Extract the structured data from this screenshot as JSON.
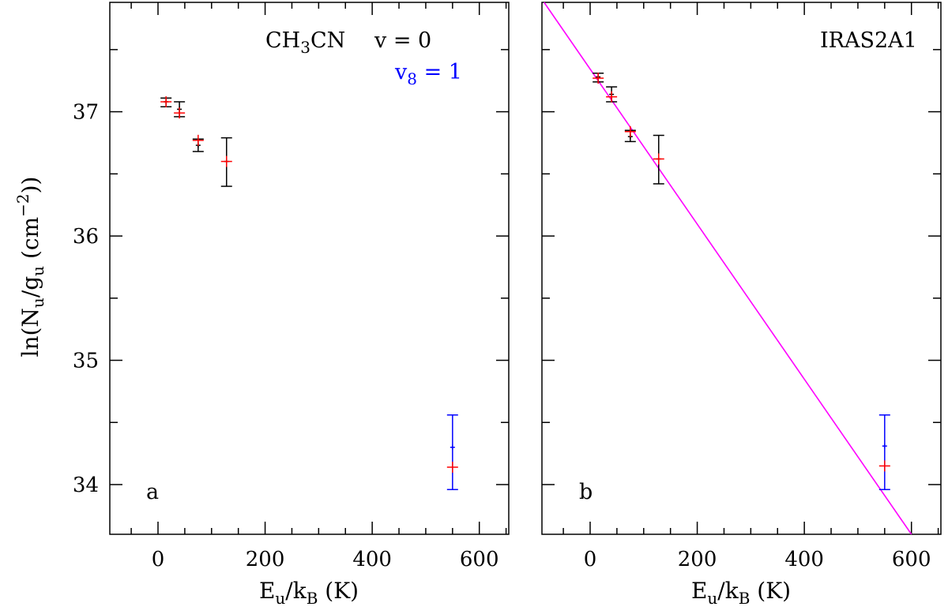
{
  "figure": {
    "shared_ylabel": "ln(N_u/g_u (cm^-2))"
  },
  "chart_data": [
    {
      "type": "scatter",
      "panel_label": "a",
      "molecule": "CH3CN",
      "legend": [
        {
          "label": "v = 0",
          "color": "#000000"
        },
        {
          "label": "v8 = 1",
          "color": "#0000ff"
        }
      ],
      "xlabel": "E_u/k_B (K)",
      "ylabel": "ln(N_u/g_u (cm^-2))",
      "xlim": [
        -90,
        655
      ],
      "ylim": [
        33.6,
        37.88
      ],
      "xticks": [
        0,
        200,
        400,
        600
      ],
      "yticks": [
        34,
        35,
        36,
        37
      ],
      "series": [
        {
          "name": "v = 0 observed",
          "color": "#000000",
          "points": [
            {
              "x": 15,
              "y": 37.08,
              "ylo": 37.04,
              "yhi": 37.11
            },
            {
              "x": 40,
              "y": 37.02,
              "ylo": 36.96,
              "yhi": 37.08
            },
            {
              "x": 75,
              "y": 36.73,
              "ylo": 36.68,
              "yhi": 36.78
            },
            {
              "x": 128,
              "y": 36.6,
              "ylo": 36.4,
              "yhi": 36.79
            }
          ]
        },
        {
          "name": "v8 = 1 observed",
          "color": "#0000ff",
          "points": [
            {
              "x": 550,
              "y": 34.3,
              "ylo": 33.96,
              "yhi": 34.56
            }
          ]
        },
        {
          "name": "model",
          "color": "#ff0000",
          "points": [
            {
              "x": 15,
              "y": 37.08
            },
            {
              "x": 40,
              "y": 36.99
            },
            {
              "x": 75,
              "y": 36.77
            },
            {
              "x": 128,
              "y": 36.6
            },
            {
              "x": 550,
              "y": 34.14
            }
          ]
        }
      ]
    },
    {
      "type": "scatter",
      "panel_label": "b",
      "source": "IRAS2A1",
      "xlabel": "E_u/k_B (K)",
      "xlim": [
        -90,
        655
      ],
      "ylim": [
        33.6,
        37.88
      ],
      "xticks": [
        0,
        200,
        400,
        600
      ],
      "yticks": [
        34,
        35,
        36,
        37
      ],
      "fit_line": {
        "color": "#ff00ff",
        "x": [
          -86,
          600
        ],
        "y": [
          37.88,
          33.6
        ]
      },
      "series": [
        {
          "name": "v = 0 observed",
          "color": "#000000",
          "points": [
            {
              "x": 15,
              "y": 37.28,
              "ylo": 37.24,
              "yhi": 37.31
            },
            {
              "x": 40,
              "y": 37.14,
              "ylo": 37.08,
              "yhi": 37.2
            },
            {
              "x": 75,
              "y": 36.8,
              "ylo": 36.76,
              "yhi": 36.85
            },
            {
              "x": 128,
              "y": 36.62,
              "ylo": 36.42,
              "yhi": 36.81
            }
          ]
        },
        {
          "name": "v8 = 1 observed",
          "color": "#0000ff",
          "points": [
            {
              "x": 550,
              "y": 34.31,
              "ylo": 33.96,
              "yhi": 34.56
            }
          ]
        },
        {
          "name": "model",
          "color": "#ff0000",
          "points": [
            {
              "x": 15,
              "y": 37.27
            },
            {
              "x": 40,
              "y": 37.12
            },
            {
              "x": 75,
              "y": 36.84
            },
            {
              "x": 128,
              "y": 36.62
            },
            {
              "x": 550,
              "y": 34.15
            }
          ]
        }
      ]
    }
  ]
}
